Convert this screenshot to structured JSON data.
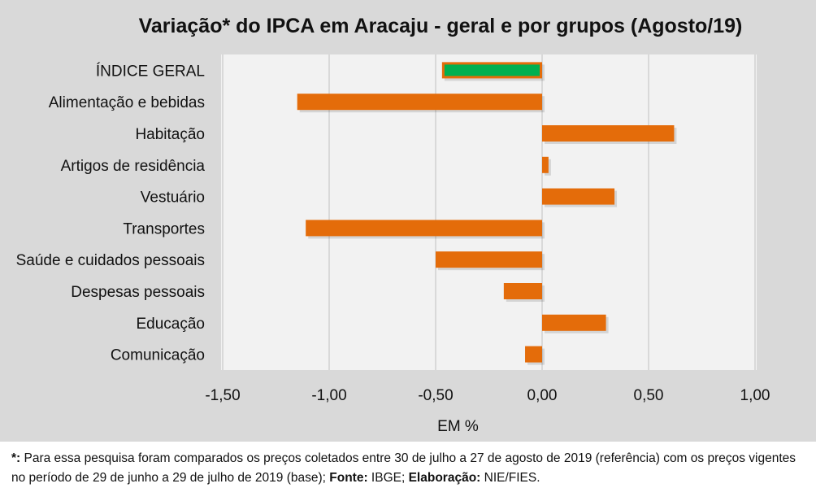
{
  "chart_data": {
    "type": "bar",
    "orientation": "horizontal",
    "title": "Variação* do IPCA em Aracaju - geral e por grupos (Agosto/19)",
    "xlabel": "EM %",
    "ylabel": "",
    "xlim": [
      -1.5,
      1.0
    ],
    "xticks": [
      "-1,50",
      "-1,00",
      "-0,50",
      "0,00",
      "0,50",
      "1,00"
    ],
    "xtick_values": [
      -1.5,
      -1.0,
      -0.5,
      0,
      0.5,
      1.0
    ],
    "grid": true,
    "categories": [
      "ÍNDICE GERAL",
      "Alimentação e bebidas",
      "Habitação",
      "Artigos de residência",
      "Vestuário",
      "Transportes",
      "Saúde e cuidados pessoais",
      "Despesas pessoais",
      "Educação",
      "Comunicação"
    ],
    "values": [
      -0.47,
      -1.15,
      0.62,
      0.03,
      0.34,
      -1.11,
      -0.5,
      -0.18,
      0.3,
      -0.08
    ],
    "colors": {
      "bar": "#e46c0a",
      "highlight": "#00b050",
      "plot_bg": "#f2f2f2",
      "grid": "#d9d9d9"
    }
  },
  "footnote": {
    "mark": "*:",
    "text1": " Para essa pesquisa foram comparados os preços coletados entre 30 de julho a 27 de agosto de 2019 (referência) com os preços vigentes no período de 29 de junho a 29 de julho de 2019 (base); ",
    "source_label": "Fonte:",
    "source": " IBGE; ",
    "elab_label": "Elaboração:",
    "elab": " NIE/FIES."
  }
}
